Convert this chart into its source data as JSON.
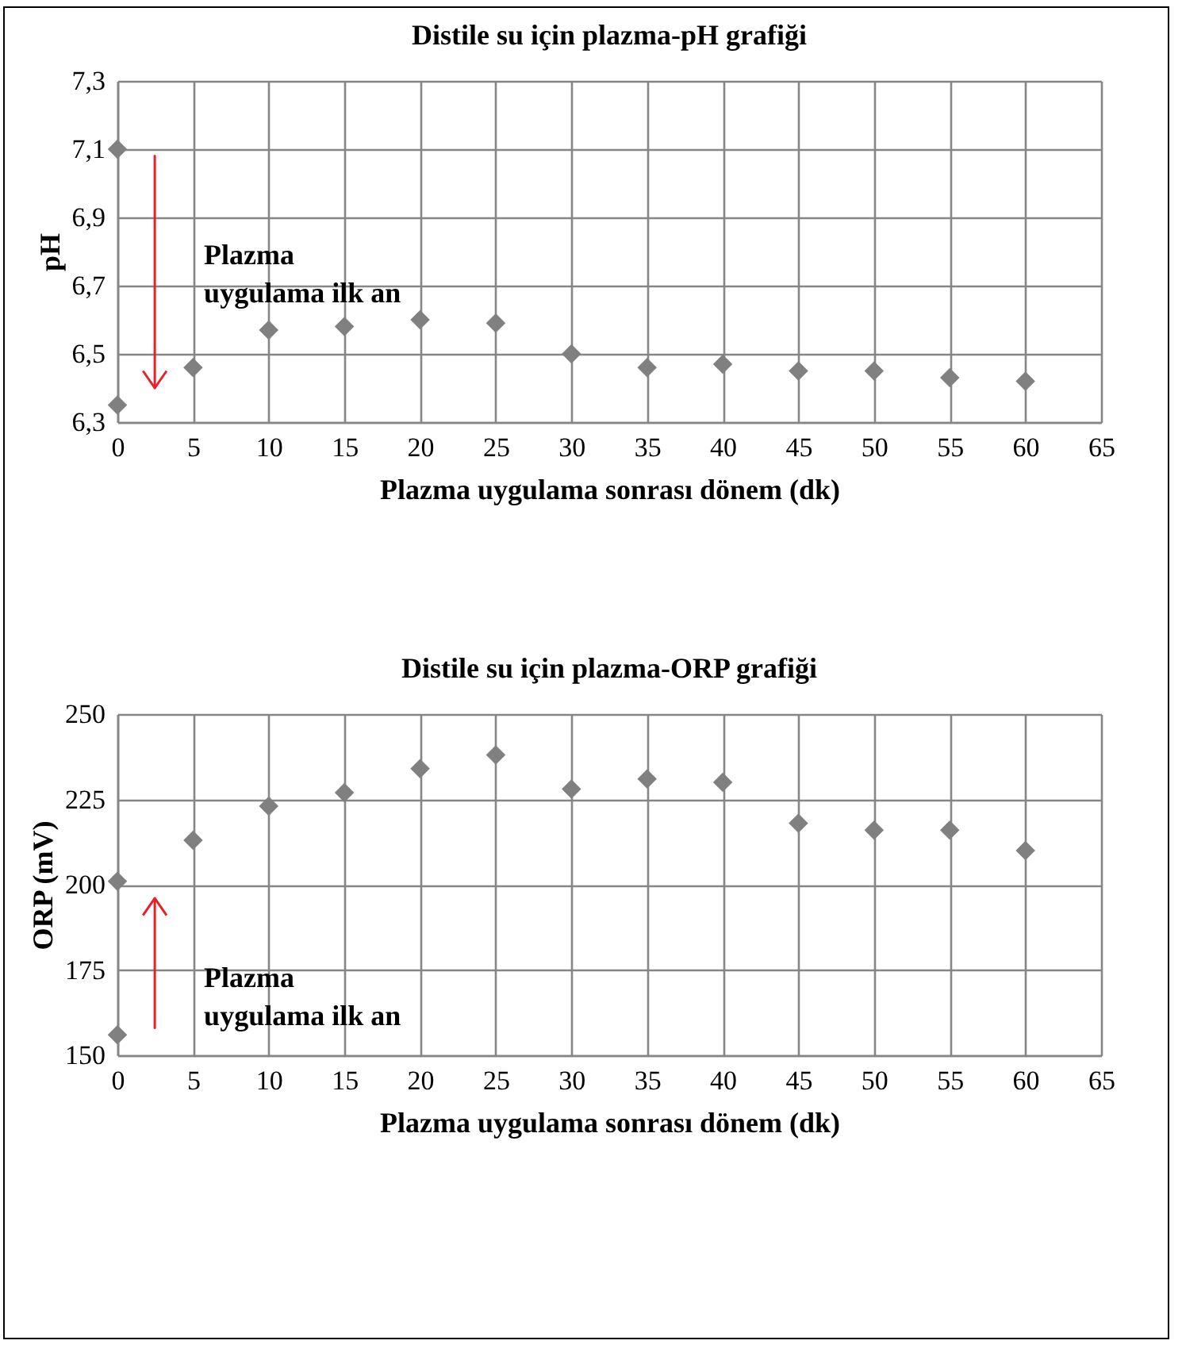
{
  "chart_data": [
    {
      "type": "scatter",
      "title": "Distile su için plazma-pH grafiği",
      "xlabel": "Plazma uygulama sonrası dönem (dk)",
      "ylabel": "pH",
      "x": [
        0,
        0,
        5,
        10,
        15,
        20,
        25,
        30,
        35,
        40,
        45,
        50,
        55,
        60
      ],
      "series": [
        {
          "color": "#808080",
          "values": [
            7.1,
            6.35,
            6.46,
            6.57,
            6.58,
            6.6,
            6.59,
            6.5,
            6.46,
            6.47,
            6.45,
            6.45,
            6.43,
            6.42
          ]
        }
      ],
      "xlim": [
        0,
        65
      ],
      "xticks": [
        0,
        5,
        10,
        15,
        20,
        25,
        30,
        35,
        40,
        45,
        50,
        55,
        60,
        65
      ],
      "ylim": [
        6.3,
        7.3
      ],
      "yticks": [
        {
          "value": 6.3,
          "label": "6,3"
        },
        {
          "value": 6.5,
          "label": "6,5"
        },
        {
          "value": 6.7,
          "label": "6,7"
        },
        {
          "value": 6.9,
          "label": "6,9"
        },
        {
          "value": 7.1,
          "label": "7,1"
        },
        {
          "value": 7.3,
          "label": "7,3"
        }
      ],
      "grid": true,
      "marker": "diamond",
      "annotations": [
        "Plazma\nuygulama ilk an"
      ]
    },
    {
      "type": "scatter",
      "title": "Distile su için plazma-ORP grafiği",
      "xlabel": "Plazma uygulama sonrası dönem (dk)",
      "ylabel": "ORP (mV)",
      "x": [
        0,
        0,
        5,
        10,
        15,
        20,
        25,
        30,
        35,
        40,
        45,
        50,
        55,
        60
      ],
      "series": [
        {
          "color": "#808080",
          "values": [
            156,
            201,
            213,
            223,
            227,
            234,
            238,
            228,
            231,
            230,
            218,
            216,
            216,
            210
          ]
        }
      ],
      "xlim": [
        0,
        65
      ],
      "xticks": [
        0,
        5,
        10,
        15,
        20,
        25,
        30,
        35,
        40,
        45,
        50,
        55,
        60,
        65
      ],
      "ylim": [
        150,
        250
      ],
      "yticks": [
        150,
        175,
        200,
        225,
        250
      ],
      "grid": true,
      "marker": "diamond",
      "annotations": [
        "Plazma\nuygulama ilk an"
      ]
    }
  ]
}
